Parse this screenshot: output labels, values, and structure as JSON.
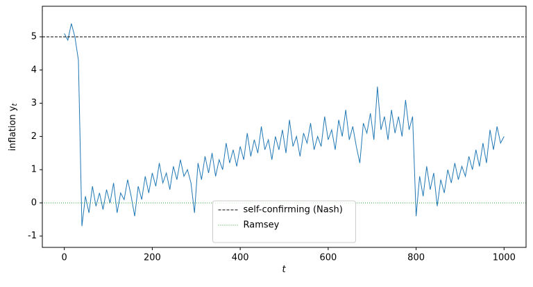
{
  "chart_data": {
    "type": "line",
    "xlabel": "t",
    "ylabel": "inflation y",
    "ylabel_subscript": "t",
    "xlim": [
      -50,
      1050
    ],
    "ylim": [
      -1.34,
      5.92
    ],
    "xticks": [
      0,
      200,
      400,
      600,
      800,
      1000
    ],
    "yticks": [
      -1,
      0,
      1,
      2,
      3,
      4,
      5
    ],
    "legend": "lower center",
    "x": [
      0,
      8,
      16,
      24,
      32,
      40,
      48,
      56,
      64,
      72,
      80,
      88,
      96,
      104,
      112,
      120,
      128,
      136,
      144,
      152,
      160,
      168,
      176,
      184,
      192,
      200,
      208,
      216,
      224,
      232,
      240,
      248,
      256,
      264,
      272,
      280,
      288,
      296,
      304,
      312,
      320,
      328,
      336,
      344,
      352,
      360,
      368,
      376,
      384,
      392,
      400,
      408,
      416,
      424,
      432,
      440,
      448,
      456,
      464,
      472,
      480,
      488,
      496,
      504,
      512,
      520,
      528,
      536,
      544,
      552,
      560,
      568,
      576,
      584,
      592,
      600,
      608,
      616,
      624,
      632,
      640,
      648,
      656,
      664,
      672,
      680,
      688,
      696,
      704,
      712,
      720,
      728,
      736,
      744,
      752,
      760,
      768,
      776,
      784,
      792,
      800,
      808,
      816,
      824,
      832,
      840,
      848,
      856,
      864,
      872,
      880,
      888,
      896,
      904,
      912,
      920,
      928,
      936,
      944,
      952,
      960,
      968,
      976,
      984,
      992,
      1000
    ],
    "series": [
      {
        "color": "#1f77b4",
        "values": [
          5.1,
          4.9,
          5.4,
          5.0,
          4.3,
          -0.7,
          0.2,
          -0.3,
          0.5,
          -0.1,
          0.3,
          -0.2,
          0.4,
          0.0,
          0.6,
          -0.3,
          0.3,
          0.1,
          0.7,
          0.2,
          -0.4,
          0.5,
          0.1,
          0.8,
          0.3,
          0.9,
          0.5,
          1.2,
          0.6,
          0.9,
          0.4,
          1.1,
          0.7,
          1.3,
          0.8,
          1.0,
          0.6,
          -0.3,
          1.2,
          0.7,
          1.4,
          0.9,
          1.5,
          0.8,
          1.3,
          1.0,
          1.8,
          1.2,
          1.6,
          1.1,
          1.7,
          1.3,
          2.1,
          1.4,
          1.9,
          1.5,
          2.3,
          1.6,
          1.9,
          1.3,
          2.0,
          1.6,
          2.2,
          1.5,
          2.5,
          1.7,
          2.0,
          1.4,
          2.1,
          1.8,
          2.4,
          1.6,
          2.0,
          1.7,
          2.6,
          1.9,
          2.2,
          1.6,
          2.5,
          2.0,
          2.8,
          1.9,
          2.3,
          1.7,
          1.2,
          2.4,
          2.1,
          2.7,
          1.9,
          3.5,
          2.2,
          2.6,
          1.9,
          2.8,
          2.1,
          2.6,
          2.0,
          3.1,
          2.2,
          2.6,
          -0.4,
          0.8,
          0.2,
          1.1,
          0.4,
          0.9,
          -0.1,
          0.7,
          0.3,
          1.0,
          0.6,
          1.2,
          0.7,
          1.1,
          0.8,
          1.4,
          1.0,
          1.6,
          1.1,
          1.8,
          1.2,
          2.2,
          1.6,
          2.3,
          1.8,
          2.0
        ]
      }
    ],
    "hlines": [
      {
        "name": "self-confirming (Nash)",
        "value": 5,
        "color": "#000000",
        "style": "dashed"
      },
      {
        "name": "Ramsey",
        "value": 0,
        "color": "#2ca02c",
        "style": "dotted"
      }
    ]
  }
}
